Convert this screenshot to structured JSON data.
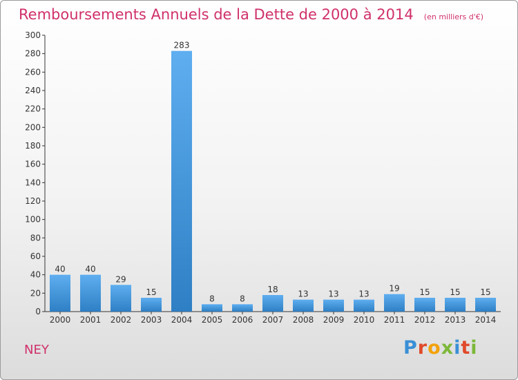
{
  "chart_data": {
    "type": "bar",
    "title": "Remboursements Annuels de la Dette de 2000 à 2014",
    "subtitle": "(en milliers d'€)",
    "categories": [
      "2000",
      "2001",
      "2002",
      "2003",
      "2004",
      "2005",
      "2006",
      "2007",
      "2008",
      "2009",
      "2010",
      "2011",
      "2012",
      "2013",
      "2014"
    ],
    "values": [
      40,
      40,
      29,
      15,
      283,
      8,
      8,
      18,
      13,
      13,
      13,
      19,
      15,
      15,
      15
    ],
    "ylim": [
      0,
      300
    ],
    "yticks": [
      0,
      20,
      40,
      60,
      80,
      100,
      120,
      140,
      160,
      180,
      200,
      220,
      240,
      260,
      280,
      300
    ],
    "grid": false,
    "bar_color": "#2e7fc4",
    "bar_color_light": "#5eaef0"
  },
  "commune": "NEY",
  "brand": {
    "letters": [
      {
        "char": "P",
        "color": "#3a8fd6"
      },
      {
        "char": "r",
        "color": "#e04a2a"
      },
      {
        "char": "o",
        "color": "#f2a20c"
      },
      {
        "char": "x",
        "color": "#7cb83a"
      },
      {
        "char": "i",
        "color": "#3a8fd6"
      },
      {
        "char": "t",
        "color": "#e04a2a"
      },
      {
        "char": "i",
        "color": "#7cb83a"
      }
    ]
  },
  "colors": {
    "accent": "#d0306a",
    "axis": "#333333",
    "text": "#333333"
  }
}
